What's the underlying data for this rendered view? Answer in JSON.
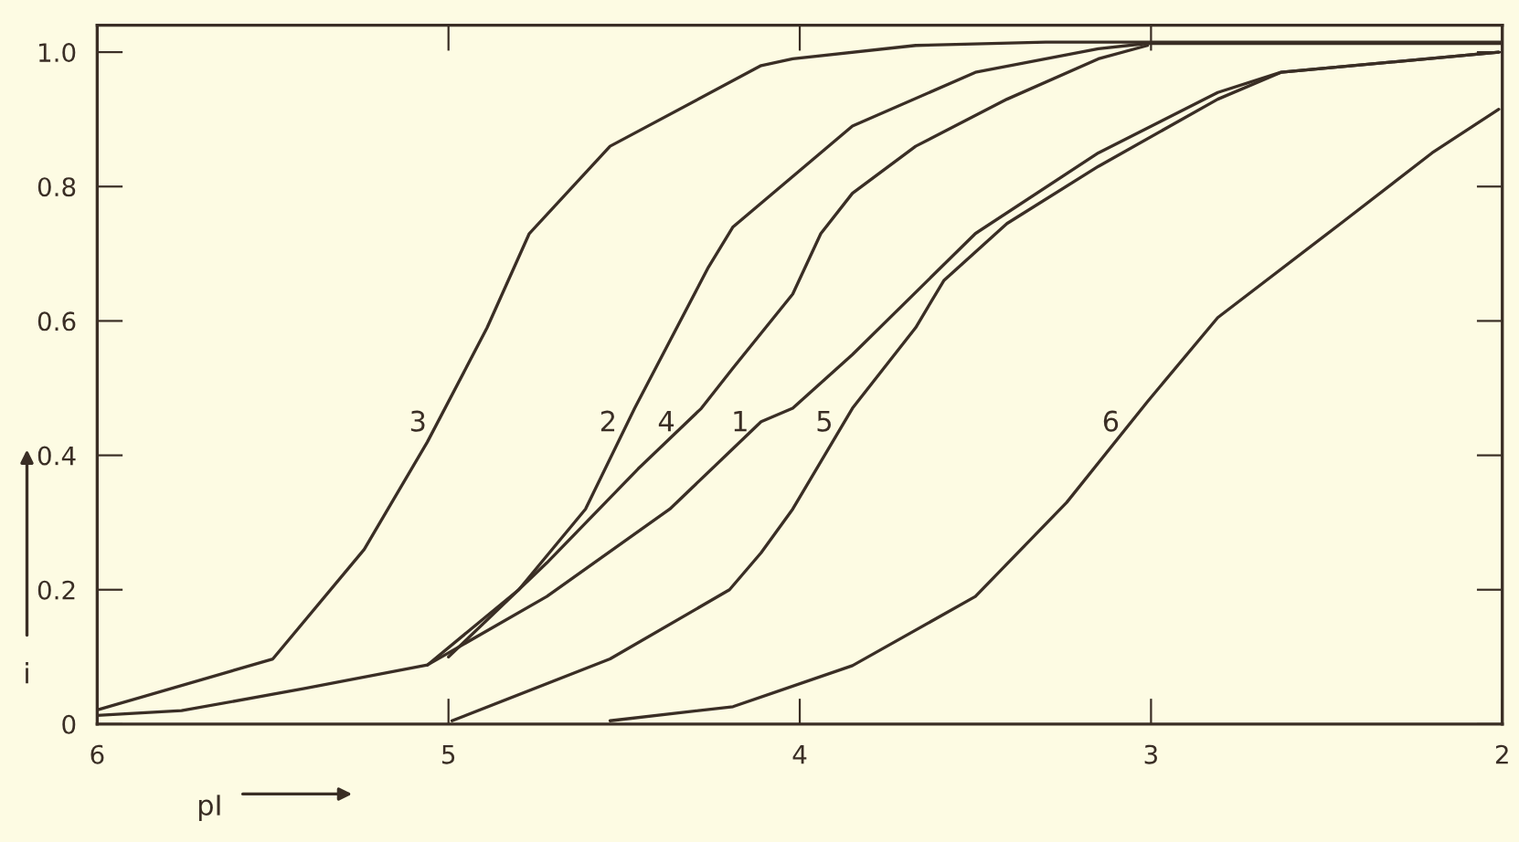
{
  "chart_data": {
    "type": "line",
    "xlabel": "pI",
    "ylabel": "i",
    "xlim": [
      6,
      2
    ],
    "ylim": [
      0,
      1.04
    ],
    "xticks": [
      6,
      5,
      4,
      3,
      2
    ],
    "yticks": [
      0,
      0.2,
      0.4,
      0.6,
      0.8,
      {
        "value": 1.0,
        "label": "1.0"
      }
    ],
    "grid": false,
    "legend": false,
    "marker": "none",
    "line_style": "solid",
    "series": [
      {
        "name": "1",
        "color": "#3a2e25",
        "x": [
          6,
          5.76,
          5.41,
          5.06,
          4.72,
          4.37,
          4.11,
          4.02,
          3.85,
          3.5,
          3.15,
          2.81,
          2.63,
          2.01
        ],
        "values": [
          0.013,
          0.02,
          0.053,
          0.088,
          0.19,
          0.32,
          0.45,
          0.47,
          0.55,
          0.73,
          0.85,
          0.94,
          0.97,
          1.0
        ]
      },
      {
        "name": "2",
        "color": "#3a2e25",
        "x": [
          5.06,
          4.8,
          4.61,
          4.47,
          4.26,
          4.19,
          3.85,
          3.5,
          3.15,
          3.01,
          2.0
        ],
        "values": [
          0.088,
          0.2,
          0.32,
          0.47,
          0.68,
          0.74,
          0.89,
          0.97,
          1.005,
          1.013,
          1.013
        ]
      },
      {
        "name": "3",
        "color": "#3a2e25",
        "x": [
          6,
          5.5,
          5.24,
          5.06,
          4.89,
          4.77,
          4.54,
          4.11,
          4.02,
          3.67,
          3.3,
          2.0
        ],
        "values": [
          0.021,
          0.097,
          0.26,
          0.42,
          0.59,
          0.73,
          0.86,
          0.98,
          0.99,
          1.01,
          1.015,
          1.015
        ]
      },
      {
        "name": "4",
        "color": "#3a2e25",
        "x": [
          5.0,
          4.72,
          4.46,
          4.28,
          4.19,
          4.02,
          3.94,
          3.85,
          3.67,
          3.41,
          3.15,
          3.01
        ],
        "values": [
          0.1,
          0.24,
          0.38,
          0.47,
          0.53,
          0.64,
          0.73,
          0.79,
          0.86,
          0.93,
          0.99,
          1.01
        ]
      },
      {
        "name": "5",
        "color": "#3a2e25",
        "x": [
          4.99,
          4.54,
          4.2,
          4.11,
          4.02,
          3.85,
          3.67,
          3.59,
          3.41,
          3.15,
          2.81,
          2.63,
          2.01
        ],
        "values": [
          0.005,
          0.097,
          0.2,
          0.255,
          0.32,
          0.47,
          0.59,
          0.66,
          0.745,
          0.83,
          0.93,
          0.97,
          1.0
        ]
      },
      {
        "name": "6",
        "color": "#3a2e25",
        "x": [
          4.54,
          4.19,
          3.85,
          3.5,
          3.24,
          3.01,
          2.81,
          2.46,
          2.2,
          2.01
        ],
        "values": [
          0.005,
          0.026,
          0.087,
          0.19,
          0.33,
          0.48,
          0.605,
          0.745,
          0.85,
          0.915
        ]
      }
    ]
  }
}
